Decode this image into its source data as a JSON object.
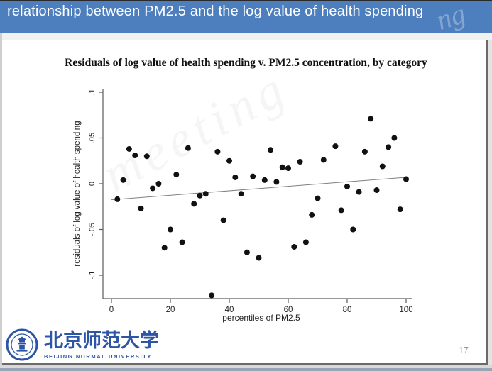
{
  "header": {
    "title": "relationship between PM2.5 and the log value of health spending",
    "background_color": "#4d7ebd"
  },
  "watermark": {
    "banner_text": "ng",
    "chart_text": "meeting"
  },
  "slide": {
    "page_number": "17"
  },
  "footer": {
    "university_name_cn": "北京师范大学",
    "university_name_en": "BEIJING NORMAL UNIVERSITY",
    "logo_color": "#2d55a5"
  },
  "chart_data": {
    "type": "scatter",
    "title": "Residuals of log value of health spending v. PM2.5 concentration, by category",
    "xlabel": "percentiles of PM2.5",
    "ylabel": "residuals of log value of health spending",
    "xticks": [
      0,
      20,
      40,
      60,
      80,
      100
    ],
    "xtick_labels": [
      "0",
      "20",
      "40",
      "60",
      "80",
      "100"
    ],
    "yticks": [
      0.1,
      0.05,
      0,
      -0.05,
      -0.1
    ],
    "ytick_labels": [
      ".1",
      ".05",
      "0",
      "-.05",
      "-.1"
    ],
    "xlim": [
      0,
      102
    ],
    "ylim": [
      -0.127,
      0.105
    ],
    "grid": false,
    "legend": "none",
    "point_color": "#111111",
    "fit_line_color": "#808080",
    "points": [
      [
        2,
        -0.017
      ],
      [
        4,
        0.004
      ],
      [
        6,
        0.038
      ],
      [
        8,
        0.031
      ],
      [
        10,
        -0.027
      ],
      [
        12,
        0.03
      ],
      [
        14,
        -0.005
      ],
      [
        16,
        0.0
      ],
      [
        18,
        -0.07
      ],
      [
        20,
        -0.05
      ],
      [
        22,
        0.01
      ],
      [
        24,
        -0.064
      ],
      [
        26,
        0.039
      ],
      [
        28,
        -0.022
      ],
      [
        30,
        -0.013
      ],
      [
        32,
        -0.011
      ],
      [
        34,
        -0.122
      ],
      [
        36,
        0.035
      ],
      [
        38,
        -0.04
      ],
      [
        40,
        0.025
      ],
      [
        42,
        0.007
      ],
      [
        44,
        -0.011
      ],
      [
        46,
        -0.075
      ],
      [
        48,
        0.008
      ],
      [
        50,
        -0.081
      ],
      [
        52,
        0.004
      ],
      [
        54,
        0.037
      ],
      [
        56,
        0.002
      ],
      [
        58,
        0.018
      ],
      [
        60,
        0.017
      ],
      [
        62,
        -0.069
      ],
      [
        64,
        0.024
      ],
      [
        66,
        -0.064
      ],
      [
        68,
        -0.034
      ],
      [
        70,
        -0.016
      ],
      [
        72,
        0.026
      ],
      [
        76,
        0.041
      ],
      [
        78,
        -0.029
      ],
      [
        80,
        -0.003
      ],
      [
        82,
        -0.05
      ],
      [
        84,
        -0.009
      ],
      [
        86,
        0.035
      ],
      [
        88,
        0.071
      ],
      [
        90,
        -0.007
      ],
      [
        92,
        0.019
      ],
      [
        94,
        0.04
      ],
      [
        96,
        0.05
      ],
      [
        98,
        -0.028
      ],
      [
        100,
        0.005
      ]
    ],
    "fit_line": {
      "x": [
        0,
        100
      ],
      "y": [
        -0.0175,
        0.007
      ]
    }
  }
}
